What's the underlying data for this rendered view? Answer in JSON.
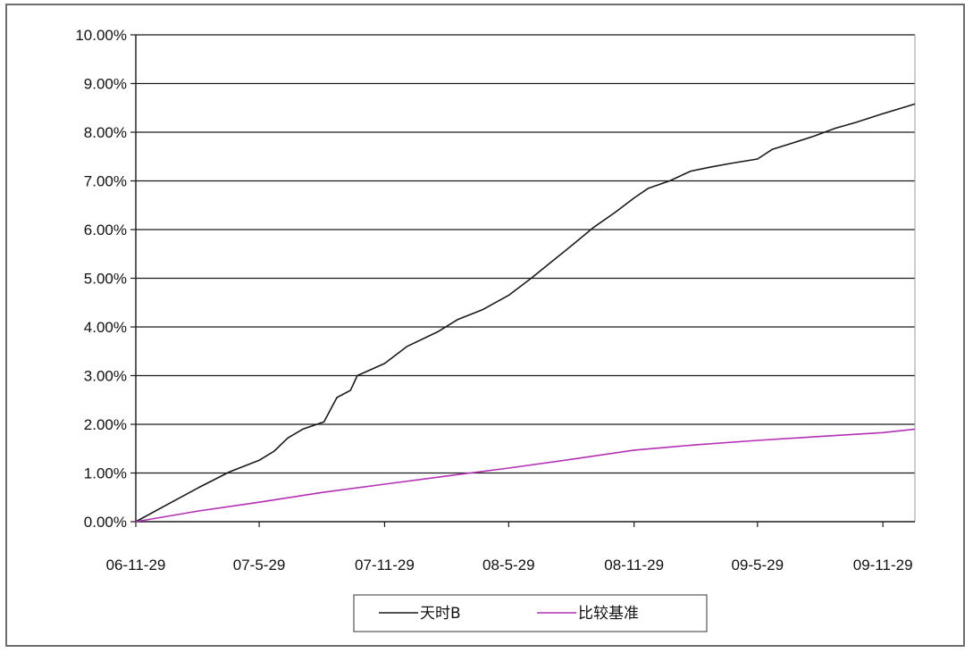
{
  "chart_data": {
    "type": "line",
    "title": "",
    "xlabel": "",
    "ylabel": "",
    "ylim": [
      0,
      10
    ],
    "y_unit": "%",
    "y_ticks": [
      "0.00%",
      "1.00%",
      "2.00%",
      "3.00%",
      "4.00%",
      "5.00%",
      "6.00%",
      "7.00%",
      "8.00%",
      "9.00%",
      "10.00%"
    ],
    "x_range": [
      "2006-11-29",
      "2010-01-15"
    ],
    "x_ticks": [
      {
        "label": "06-11-29",
        "date": "2006-11-29"
      },
      {
        "label": "07-5-29",
        "date": "2007-05-29"
      },
      {
        "label": "07-11-29",
        "date": "2007-11-29"
      },
      {
        "label": "08-5-29",
        "date": "2008-05-29"
      },
      {
        "label": "08-11-29",
        "date": "2008-11-29"
      },
      {
        "label": "09-5-29",
        "date": "2009-05-29"
      },
      {
        "label": "09-11-29",
        "date": "2009-11-29"
      }
    ],
    "grid": "horizontal",
    "legend_position": "bottom-center",
    "series": [
      {
        "name": "天时B",
        "color": "#1a1a1a",
        "points": [
          [
            "2006-11-29",
            0.0
          ],
          [
            "2007-01-15",
            0.36
          ],
          [
            "2007-03-01",
            0.7
          ],
          [
            "2007-04-15",
            1.02
          ],
          [
            "2007-05-29",
            1.26
          ],
          [
            "2007-06-20",
            1.45
          ],
          [
            "2007-07-10",
            1.72
          ],
          [
            "2007-08-01",
            1.9
          ],
          [
            "2007-09-01",
            2.05
          ],
          [
            "2007-09-20",
            2.55
          ],
          [
            "2007-10-10",
            2.7
          ],
          [
            "2007-10-20",
            3.0
          ],
          [
            "2007-11-29",
            3.25
          ],
          [
            "2008-01-01",
            3.6
          ],
          [
            "2008-02-15",
            3.9
          ],
          [
            "2008-03-15",
            4.15
          ],
          [
            "2008-04-20",
            4.35
          ],
          [
            "2008-05-29",
            4.65
          ],
          [
            "2008-07-01",
            5.0
          ],
          [
            "2008-08-01",
            5.35
          ],
          [
            "2008-09-01",
            5.7
          ],
          [
            "2008-10-01",
            6.05
          ],
          [
            "2008-11-01",
            6.35
          ],
          [
            "2008-11-29",
            6.65
          ],
          [
            "2008-12-20",
            6.85
          ],
          [
            "2009-01-20",
            7.0
          ],
          [
            "2009-02-20",
            7.2
          ],
          [
            "2009-03-20",
            7.28
          ],
          [
            "2009-04-20",
            7.36
          ],
          [
            "2009-05-29",
            7.45
          ],
          [
            "2009-06-20",
            7.65
          ],
          [
            "2009-07-20",
            7.78
          ],
          [
            "2009-08-20",
            7.92
          ],
          [
            "2009-09-20",
            8.08
          ],
          [
            "2009-10-20",
            8.2
          ],
          [
            "2009-11-29",
            8.38
          ],
          [
            "2010-01-15",
            8.58
          ]
        ]
      },
      {
        "name": "比较基准",
        "color": "#b42fb4",
        "points": [
          [
            "2006-11-29",
            0.0
          ],
          [
            "2007-03-01",
            0.22
          ],
          [
            "2007-05-29",
            0.4
          ],
          [
            "2007-08-29",
            0.6
          ],
          [
            "2007-11-29",
            0.77
          ],
          [
            "2008-02-29",
            0.94
          ],
          [
            "2008-05-29",
            1.1
          ],
          [
            "2008-08-29",
            1.28
          ],
          [
            "2008-11-29",
            1.47
          ],
          [
            "2009-02-28",
            1.58
          ],
          [
            "2009-05-29",
            1.67
          ],
          [
            "2009-08-29",
            1.75
          ],
          [
            "2009-11-29",
            1.83
          ],
          [
            "2010-01-15",
            1.9
          ]
        ]
      }
    ]
  }
}
